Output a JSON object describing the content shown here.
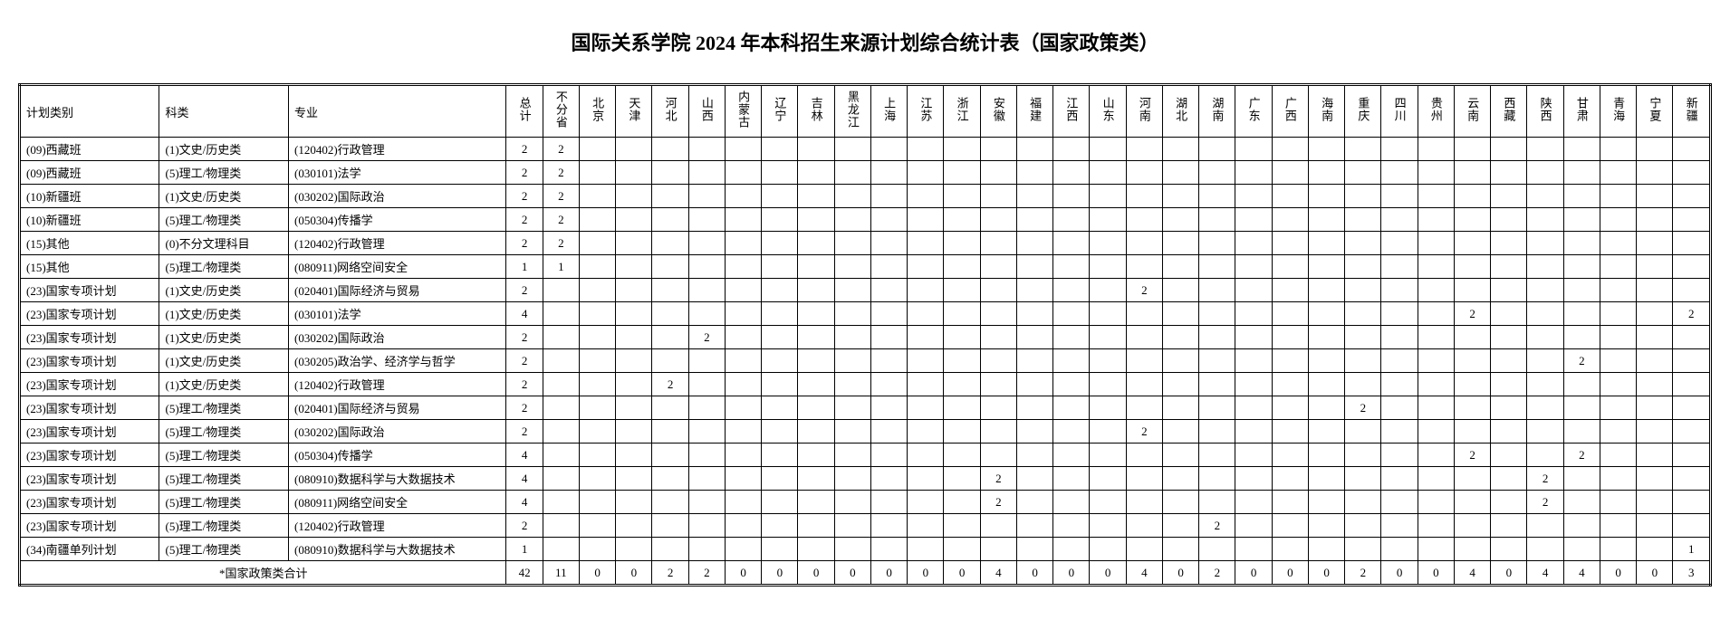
{
  "title": "国际关系学院 2024 年本科招生来源计划综合统计表（国家政策类）",
  "headers": {
    "category": "计划类别",
    "subject": "科类",
    "major": "专业",
    "total": "总计",
    "provinces": [
      "不分省",
      "北京",
      "天津",
      "河北",
      "山西",
      "内蒙古",
      "辽宁",
      "吉林",
      "黑龙江",
      "上海",
      "江苏",
      "浙江",
      "安徽",
      "福建",
      "江西",
      "山东",
      "河南",
      "湖北",
      "湖南",
      "广东",
      "广西",
      "海南",
      "重庆",
      "四川",
      "贵州",
      "云南",
      "西藏",
      "陕西",
      "甘肃",
      "青海",
      "宁夏",
      "新疆"
    ]
  },
  "rows": [
    {
      "category": "(09)西藏班",
      "subject": "(1)文史/历史类",
      "major": "(120402)行政管理",
      "total": "2",
      "v": [
        "2",
        "",
        "",
        "",
        "",
        "",
        "",
        "",
        "",
        "",
        "",
        "",
        "",
        "",
        "",
        "",
        "",
        "",
        "",
        "",
        "",
        "",
        "",
        "",
        "",
        "",
        "",
        "",
        "",
        "",
        "",
        ""
      ]
    },
    {
      "category": "(09)西藏班",
      "subject": "(5)理工/物理类",
      "major": "(030101)法学",
      "total": "2",
      "v": [
        "2",
        "",
        "",
        "",
        "",
        "",
        "",
        "",
        "",
        "",
        "",
        "",
        "",
        "",
        "",
        "",
        "",
        "",
        "",
        "",
        "",
        "",
        "",
        "",
        "",
        "",
        "",
        "",
        "",
        "",
        "",
        ""
      ]
    },
    {
      "category": "(10)新疆班",
      "subject": "(1)文史/历史类",
      "major": "(030202)国际政治",
      "total": "2",
      "v": [
        "2",
        "",
        "",
        "",
        "",
        "",
        "",
        "",
        "",
        "",
        "",
        "",
        "",
        "",
        "",
        "",
        "",
        "",
        "",
        "",
        "",
        "",
        "",
        "",
        "",
        "",
        "",
        "",
        "",
        "",
        "",
        ""
      ]
    },
    {
      "category": "(10)新疆班",
      "subject": "(5)理工/物理类",
      "major": "(050304)传播学",
      "total": "2",
      "v": [
        "2",
        "",
        "",
        "",
        "",
        "",
        "",
        "",
        "",
        "",
        "",
        "",
        "",
        "",
        "",
        "",
        "",
        "",
        "",
        "",
        "",
        "",
        "",
        "",
        "",
        "",
        "",
        "",
        "",
        "",
        "",
        ""
      ]
    },
    {
      "category": "(15)其他",
      "subject": "(0)不分文理科目",
      "major": "(120402)行政管理",
      "total": "2",
      "v": [
        "2",
        "",
        "",
        "",
        "",
        "",
        "",
        "",
        "",
        "",
        "",
        "",
        "",
        "",
        "",
        "",
        "",
        "",
        "",
        "",
        "",
        "",
        "",
        "",
        "",
        "",
        "",
        "",
        "",
        "",
        "",
        ""
      ]
    },
    {
      "category": "(15)其他",
      "subject": "(5)理工/物理类",
      "major": "(080911)网络空间安全",
      "total": "1",
      "v": [
        "1",
        "",
        "",
        "",
        "",
        "",
        "",
        "",
        "",
        "",
        "",
        "",
        "",
        "",
        "",
        "",
        "",
        "",
        "",
        "",
        "",
        "",
        "",
        "",
        "",
        "",
        "",
        "",
        "",
        "",
        "",
        ""
      ]
    },
    {
      "category": "(23)国家专项计划",
      "subject": "(1)文史/历史类",
      "major": "(020401)国际经济与贸易",
      "total": "2",
      "v": [
        "",
        "",
        "",
        "",
        "",
        "",
        "",
        "",
        "",
        "",
        "",
        "",
        "",
        "",
        "",
        "",
        "2",
        "",
        "",
        "",
        "",
        "",
        "",
        "",
        "",
        "",
        "",
        "",
        "",
        "",
        "",
        ""
      ]
    },
    {
      "category": "(23)国家专项计划",
      "subject": "(1)文史/历史类",
      "major": "(030101)法学",
      "total": "4",
      "v": [
        "",
        "",
        "",
        "",
        "",
        "",
        "",
        "",
        "",
        "",
        "",
        "",
        "",
        "",
        "",
        "",
        "",
        "",
        "",
        "",
        "",
        "",
        "",
        "",
        "",
        "2",
        "",
        "",
        "",
        "",
        "",
        "2"
      ]
    },
    {
      "category": "(23)国家专项计划",
      "subject": "(1)文史/历史类",
      "major": "(030202)国际政治",
      "total": "2",
      "v": [
        "",
        "",
        "",
        "",
        "2",
        "",
        "",
        "",
        "",
        "",
        "",
        "",
        "",
        "",
        "",
        "",
        "",
        "",
        "",
        "",
        "",
        "",
        "",
        "",
        "",
        "",
        "",
        "",
        "",
        "",
        "",
        ""
      ]
    },
    {
      "category": "(23)国家专项计划",
      "subject": "(1)文史/历史类",
      "major": "(030205)政治学、经济学与哲学",
      "total": "2",
      "v": [
        "",
        "",
        "",
        "",
        "",
        "",
        "",
        "",
        "",
        "",
        "",
        "",
        "",
        "",
        "",
        "",
        "",
        "",
        "",
        "",
        "",
        "",
        "",
        "",
        "",
        "",
        "",
        "",
        "2",
        "",
        "",
        ""
      ]
    },
    {
      "category": "(23)国家专项计划",
      "subject": "(1)文史/历史类",
      "major": "(120402)行政管理",
      "total": "2",
      "v": [
        "",
        "",
        "",
        "2",
        "",
        "",
        "",
        "",
        "",
        "",
        "",
        "",
        "",
        "",
        "",
        "",
        "",
        "",
        "",
        "",
        "",
        "",
        "",
        "",
        "",
        "",
        "",
        "",
        "",
        "",
        "",
        ""
      ]
    },
    {
      "category": "(23)国家专项计划",
      "subject": "(5)理工/物理类",
      "major": "(020401)国际经济与贸易",
      "total": "2",
      "v": [
        "",
        "",
        "",
        "",
        "",
        "",
        "",
        "",
        "",
        "",
        "",
        "",
        "",
        "",
        "",
        "",
        "",
        "",
        "",
        "",
        "",
        "",
        "2",
        "",
        "",
        "",
        "",
        "",
        "",
        "",
        "",
        ""
      ]
    },
    {
      "category": "(23)国家专项计划",
      "subject": "(5)理工/物理类",
      "major": "(030202)国际政治",
      "total": "2",
      "v": [
        "",
        "",
        "",
        "",
        "",
        "",
        "",
        "",
        "",
        "",
        "",
        "",
        "",
        "",
        "",
        "",
        "2",
        "",
        "",
        "",
        "",
        "",
        "",
        "",
        "",
        "",
        "",
        "",
        "",
        "",
        "",
        ""
      ]
    },
    {
      "category": "(23)国家专项计划",
      "subject": "(5)理工/物理类",
      "major": "(050304)传播学",
      "total": "4",
      "v": [
        "",
        "",
        "",
        "",
        "",
        "",
        "",
        "",
        "",
        "",
        "",
        "",
        "",
        "",
        "",
        "",
        "",
        "",
        "",
        "",
        "",
        "",
        "",
        "",
        "",
        "2",
        "",
        "",
        "2",
        "",
        "",
        ""
      ]
    },
    {
      "category": "(23)国家专项计划",
      "subject": "(5)理工/物理类",
      "major": "(080910)数据科学与大数据技术",
      "total": "4",
      "v": [
        "",
        "",
        "",
        "",
        "",
        "",
        "",
        "",
        "",
        "",
        "",
        "",
        "2",
        "",
        "",
        "",
        "",
        "",
        "",
        "",
        "",
        "",
        "",
        "",
        "",
        "",
        "",
        "2",
        "",
        "",
        "",
        ""
      ]
    },
    {
      "category": "(23)国家专项计划",
      "subject": "(5)理工/物理类",
      "major": "(080911)网络空间安全",
      "total": "4",
      "v": [
        "",
        "",
        "",
        "",
        "",
        "",
        "",
        "",
        "",
        "",
        "",
        "",
        "2",
        "",
        "",
        "",
        "",
        "",
        "",
        "",
        "",
        "",
        "",
        "",
        "",
        "",
        "",
        "2",
        "",
        "",
        "",
        ""
      ]
    },
    {
      "category": "(23)国家专项计划",
      "subject": "(5)理工/物理类",
      "major": "(120402)行政管理",
      "total": "2",
      "v": [
        "",
        "",
        "",
        "",
        "",
        "",
        "",
        "",
        "",
        "",
        "",
        "",
        "",
        "",
        "",
        "",
        "",
        "",
        "2",
        "",
        "",
        "",
        "",
        "",
        "",
        "",
        "",
        "",
        "",
        "",
        "",
        ""
      ]
    },
    {
      "category": "(34)南疆单列计划",
      "subject": "(5)理工/物理类",
      "major": "(080910)数据科学与大数据技术",
      "total": "1",
      "v": [
        "",
        "",
        "",
        "",
        "",
        "",
        "",
        "",
        "",
        "",
        "",
        "",
        "",
        "",
        "",
        "",
        "",
        "",
        "",
        "",
        "",
        "",
        "",
        "",
        "",
        "",
        "",
        "",
        "",
        "",
        "",
        "1"
      ]
    }
  ],
  "totalLabel": "*国家政策类合计",
  "totals": {
    "total": "42",
    "v": [
      "11",
      "0",
      "0",
      "2",
      "2",
      "0",
      "0",
      "0",
      "0",
      "0",
      "0",
      "0",
      "4",
      "0",
      "0",
      "0",
      "4",
      "0",
      "2",
      "0",
      "0",
      "0",
      "2",
      "0",
      "0",
      "4",
      "0",
      "4",
      "4",
      "0",
      "0",
      "3"
    ]
  }
}
